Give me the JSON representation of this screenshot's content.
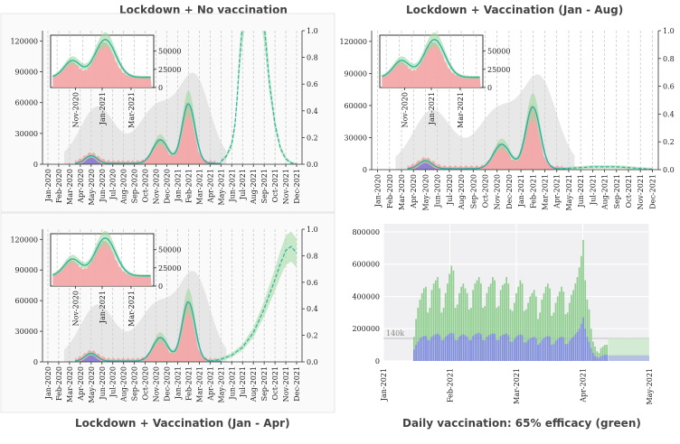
{
  "chart_data": [
    {
      "id": "p1",
      "type": "area",
      "title": "Lockdown + No vaccination",
      "left_ticks": [
        "0",
        "30000",
        "60000",
        "90000",
        "120000"
      ],
      "left_ylim": [
        0,
        130000
      ],
      "right_ticks": [
        "0.0",
        "0.2",
        "0.4",
        "0.6",
        "0.8",
        "1.0"
      ],
      "right_ylim": [
        0,
        1
      ],
      "x_ticks": [
        "Jan-2020",
        "Feb-2020",
        "Mar-2020",
        "Apr-2020",
        "May-2020",
        "Jun-2020",
        "Jul-2020",
        "Aug-2020",
        "Sep-2020",
        "Oct-2020",
        "Nov-2020",
        "Dec-2020",
        "Jan-2021",
        "Feb-2021",
        "Mar-2021",
        "Apr-2021",
        "May-2021",
        "Jun-2021",
        "Jul-2021",
        "Aug-2021",
        "Sep-2021",
        "Oct-2021",
        "Nov-2021",
        "Dec-2021"
      ],
      "fraction_curve": {
        "x": [
          16,
          16.5,
          17,
          17.3,
          17.5,
          17.7,
          18,
          18.5,
          19,
          19.5,
          20,
          20.5,
          21,
          21.5,
          22,
          22.5,
          23
        ],
        "y": [
          0.02,
          0.06,
          0.15,
          0.3,
          0.5,
          0.75,
          1.05,
          1.3,
          1.3,
          1.3,
          1.05,
          0.6,
          0.3,
          0.12,
          0.04,
          0.01,
          0.0
        ]
      },
      "inset": {
        "ticks": [
          "0",
          "25000",
          "50000"
        ],
        "x_ticks": [
          "Nov-2020",
          "Jan-2021",
          "Mar-2021"
        ]
      }
    },
    {
      "id": "p2",
      "type": "area",
      "title": "Lockdown + Vaccination (Jan - Aug)",
      "left_ticks": [
        "0",
        "30000",
        "60000",
        "90000",
        "120000"
      ],
      "left_ylim": [
        0,
        130000
      ],
      "right_ticks": [
        "0.0",
        "0.2",
        "0.4",
        "0.6",
        "0.8",
        "1.0"
      ],
      "right_ylim": [
        0,
        1
      ],
      "x_ticks": [
        "Jan-2020",
        "Feb-2020",
        "Mar-2020",
        "Apr-2020",
        "May-2020",
        "Jun-2020",
        "Jul-2020",
        "Aug-2020",
        "Sep-2020",
        "Oct-2020",
        "Nov-2020",
        "Dec-2020",
        "Jan-2021",
        "Feb-2021",
        "Mar-2021",
        "Apr-2021",
        "May-2021",
        "Jun-2021",
        "Jul-2021",
        "Aug-2021",
        "Sep-2021",
        "Oct-2021",
        "Nov-2021",
        "Dec-2021"
      ],
      "fraction_curve": {
        "x": [
          15,
          16,
          17,
          18,
          19,
          20,
          21,
          22,
          23
        ],
        "y": [
          0.005,
          0.01,
          0.015,
          0.02,
          0.02,
          0.02,
          0.015,
          0.008,
          0.003
        ]
      },
      "inset": {
        "ticks": [
          "0",
          "25000",
          "50000"
        ],
        "x_ticks": [
          "Nov-2020",
          "Jan-2021",
          "Mar-2021"
        ]
      }
    },
    {
      "id": "p3",
      "type": "area",
      "title": "Lockdown + Vaccination (Jan - Apr)",
      "left_ticks": [
        "0",
        "30000",
        "60000",
        "90000",
        "120000"
      ],
      "left_ylim": [
        0,
        130000
      ],
      "right_ticks": [
        "0.0",
        "0.2",
        "0.4",
        "0.6",
        "0.8",
        "1.0"
      ],
      "right_ylim": [
        0,
        1
      ],
      "x_ticks": [
        "Jan-2020",
        "Feb-2020",
        "Mar-2020",
        "Apr-2020",
        "May-2020",
        "Jun-2020",
        "Jul-2020",
        "Aug-2020",
        "Sep-2020",
        "Oct-2020",
        "Nov-2020",
        "Dec-2020",
        "Jan-2021",
        "Feb-2021",
        "Mar-2021",
        "Apr-2021",
        "May-2021",
        "Jun-2021",
        "Jul-2021",
        "Aug-2021",
        "Sep-2021",
        "Oct-2021",
        "Nov-2021",
        "Dec-2021"
      ],
      "fraction_curve": {
        "x": [
          15,
          16,
          17,
          18,
          19,
          20,
          21,
          21.5,
          22,
          22.5,
          23
        ],
        "y": [
          0.005,
          0.02,
          0.05,
          0.11,
          0.22,
          0.4,
          0.62,
          0.74,
          0.84,
          0.87,
          0.82
        ]
      },
      "inset": {
        "ticks": [
          "0",
          "25000",
          "50000"
        ],
        "x_ticks": [
          "Nov-2020",
          "Jan-2021",
          "Mar-2021"
        ]
      }
    },
    {
      "id": "p4",
      "type": "bar",
      "title": "Daily vaccination: 65% efficacy (green)",
      "y_ticks": [
        "0",
        "200000",
        "400000",
        "600000",
        "800000"
      ],
      "ylim": [
        0,
        850000
      ],
      "x_ticks": [
        "Jan-2021",
        "Feb-2021",
        "Mar-2021",
        "Apr-2021",
        "May-2021"
      ],
      "annotation": "140k",
      "reference_line": 140000,
      "series": [
        {
          "color": "#8fce8f",
          "values": [
            150000,
            260000,
            330000,
            380000,
            420000,
            450000,
            460000,
            300000,
            330000,
            440000,
            480000,
            500000,
            520000,
            450000,
            300000,
            330000,
            420000,
            480000,
            540000,
            590000,
            560000,
            330000,
            350000,
            420000,
            460000,
            480000,
            450000,
            420000,
            320000,
            330000,
            440000,
            480000,
            500000,
            520000,
            480000,
            330000,
            340000,
            420000,
            460000,
            480000,
            520000,
            500000,
            330000,
            340000,
            440000,
            470000,
            480000,
            520000,
            480000,
            320000,
            310000,
            360000,
            420000,
            460000,
            500000,
            480000,
            310000,
            320000,
            360000,
            400000,
            420000,
            440000,
            400000,
            260000,
            300000,
            380000,
            420000,
            460000,
            480000,
            450000,
            280000,
            300000,
            360000,
            400000,
            430000,
            460000,
            430000,
            290000,
            300000,
            360000,
            410000,
            440000,
            480000,
            520000,
            580000,
            650000,
            750000,
            500000,
            380000,
            320000,
            200000,
            120000,
            90000,
            60000,
            50000,
            80000,
            90000,
            100000,
            100000
          ]
        },
        {
          "color": "#8080f0",
          "values": [
            70000,
            100000,
            120000,
            140000,
            150000,
            155000,
            155000,
            130000,
            130000,
            150000,
            160000,
            165000,
            170000,
            160000,
            130000,
            130000,
            150000,
            160000,
            170000,
            175000,
            170000,
            130000,
            130000,
            150000,
            160000,
            165000,
            160000,
            150000,
            130000,
            130000,
            155000,
            165000,
            170000,
            175000,
            165000,
            130000,
            130000,
            150000,
            160000,
            165000,
            170000,
            168000,
            130000,
            130000,
            155000,
            162000,
            165000,
            170000,
            160000,
            120000,
            120000,
            135000,
            150000,
            160000,
            165000,
            160000,
            115000,
            115000,
            130000,
            140000,
            145000,
            150000,
            140000,
            100000,
            110000,
            130000,
            140000,
            150000,
            155000,
            150000,
            100000,
            105000,
            125000,
            135000,
            145000,
            150000,
            145000,
            105000,
            105000,
            125000,
            140000,
            150000,
            165000,
            180000,
            200000,
            230000,
            270000,
            200000,
            150000,
            120000,
            80000,
            50000,
            30000,
            25000,
            20000,
            30000,
            35000,
            38000,
            38000
          ]
        }
      ]
    }
  ]
}
